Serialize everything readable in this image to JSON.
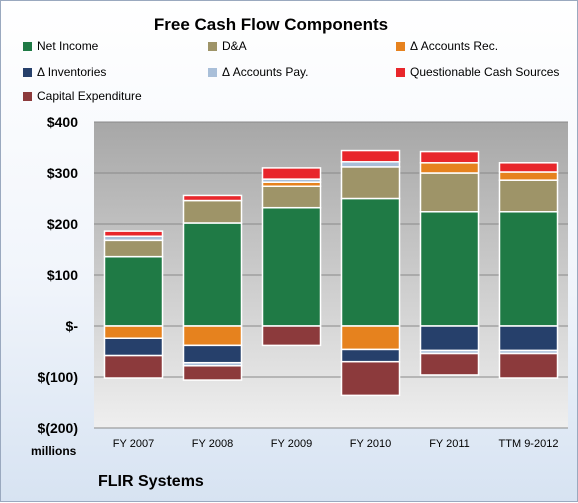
{
  "chart_data": {
    "type": "bar",
    "stacked": true,
    "title": "Free Cash Flow Components",
    "categories": [
      "FY 2007",
      "FY 2008",
      "FY 2009",
      "FY 2010",
      "FY 2011",
      "TTM 9-2012"
    ],
    "y_tick_labels": [
      "$400",
      "$300",
      "$200",
      "$100",
      "$-",
      "$(100)",
      "$(200)"
    ],
    "ylim": [
      -200,
      400
    ],
    "grid": true,
    "legend": "top",
    "ylabel": "millions",
    "series": [
      {
        "name": "Net Income",
        "color": "#1f7a45",
        "values": [
          136,
          202,
          232,
          250,
          224,
          224
        ]
      },
      {
        "name": "D&A",
        "color": "#9e9468",
        "values": [
          32,
          44,
          42,
          62,
          76,
          62
        ]
      },
      {
        "name": "Δ Accounts Rec.",
        "color": "#e6821e",
        "values": [
          -24,
          -38,
          8,
          -46,
          20,
          16
        ]
      },
      {
        "name": "Δ Inventories",
        "color": "#26406b",
        "values": [
          -34,
          -34,
          0,
          -24,
          -48,
          -48
        ]
      },
      {
        "name": "Δ Accounts Pay.",
        "color": "#a9bfd9",
        "values": [
          8,
          -6,
          6,
          10,
          -6,
          -6
        ]
      },
      {
        "name": "Questionable Cash Sources",
        "color": "#e8262b",
        "values": [
          10,
          10,
          22,
          22,
          22,
          18
        ]
      },
      {
        "name": "Capital Expenditure",
        "color": "#8c3a3c",
        "values": [
          -44,
          -28,
          -38,
          -66,
          -42,
          -48
        ]
      }
    ]
  },
  "company": "FLIR Systems"
}
